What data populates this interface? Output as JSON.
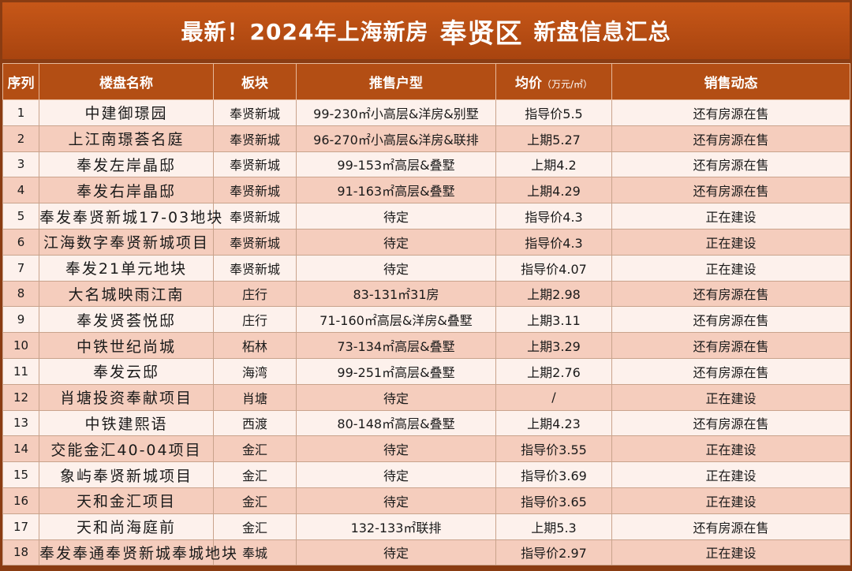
{
  "title": {
    "prefix": "最新！2024年上海新房",
    "district": "奉贤区",
    "suffix": "新盘信息汇总"
  },
  "headers": {
    "seq": "序列",
    "name": "楼盘名称",
    "block": "板块",
    "type": "推售户型",
    "price": "均价",
    "price_unit": "（万元/㎡）",
    "status": "销售动态"
  },
  "rows": [
    {
      "seq": "1",
      "name": "中建御璟园",
      "block": "奉贤新城",
      "type": "99-230㎡小高层&洋房&别墅",
      "price": "指导价5.5",
      "status": "还有房源在售"
    },
    {
      "seq": "2",
      "name": "上江南璟荟名庭",
      "block": "奉贤新城",
      "type": "96-270㎡小高层&洋房&联排",
      "price": "上期5.27",
      "status": "还有房源在售"
    },
    {
      "seq": "3",
      "name": "奉发左岸晶邸",
      "block": "奉贤新城",
      "type": "99-153㎡高层&叠墅",
      "price": "上期4.2",
      "status": "还有房源在售"
    },
    {
      "seq": "4",
      "name": "奉发右岸晶邸",
      "block": "奉贤新城",
      "type": "91-163㎡高层&叠墅",
      "price": "上期4.29",
      "status": "还有房源在售"
    },
    {
      "seq": "5",
      "name": "奉发奉贤新城17-03地块",
      "block": "奉贤新城",
      "type": "待定",
      "price": "指导价4.3",
      "status": "正在建设"
    },
    {
      "seq": "6",
      "name": "江海数字奉贤新城项目",
      "block": "奉贤新城",
      "type": "待定",
      "price": "指导价4.3",
      "status": "正在建设"
    },
    {
      "seq": "7",
      "name": "奉发21单元地块",
      "block": "奉贤新城",
      "type": "待定",
      "price": "指导价4.07",
      "status": "正在建设"
    },
    {
      "seq": "8",
      "name": "大名城映雨江南",
      "block": "庄行",
      "type": "83-131㎡31房",
      "price": "上期2.98",
      "status": "还有房源在售"
    },
    {
      "seq": "9",
      "name": "奉发贤荟悦邸",
      "block": "庄行",
      "type": "71-160㎡高层&洋房&叠墅",
      "price": "上期3.11",
      "status": "还有房源在售"
    },
    {
      "seq": "10",
      "name": "中铁世纪尚城",
      "block": "柘林",
      "type": "73-134㎡高层&叠墅",
      "price": "上期3.29",
      "status": "还有房源在售"
    },
    {
      "seq": "11",
      "name": "奉发云邸",
      "block": "海湾",
      "type": "99-251㎡高层&叠墅",
      "price": "上期2.76",
      "status": "还有房源在售"
    },
    {
      "seq": "12",
      "name": "肖塘投资奉献项目",
      "block": "肖塘",
      "type": "待定",
      "price": "/",
      "status": "正在建设"
    },
    {
      "seq": "13",
      "name": "中铁建熙语",
      "block": "西渡",
      "type": "80-148㎡高层&叠墅",
      "price": "上期4.23",
      "status": "还有房源在售"
    },
    {
      "seq": "14",
      "name": "交能金汇40-04项目",
      "block": "金汇",
      "type": "待定",
      "price": "指导价3.55",
      "status": "正在建设"
    },
    {
      "seq": "15",
      "name": "象屿奉贤新城项目",
      "block": "金汇",
      "type": "待定",
      "price": "指导价3.69",
      "status": "正在建设"
    },
    {
      "seq": "16",
      "name": "天和金汇项目",
      "block": "金汇",
      "type": "待定",
      "price": "指导价3.65",
      "status": "正在建设"
    },
    {
      "seq": "17",
      "name": "天和尚海庭前",
      "block": "金汇",
      "type": "132-133㎡联排",
      "price": "上期5.3",
      "status": "还有房源在售"
    },
    {
      "seq": "18",
      "name": "奉发奉通奉贤新城奉城地块",
      "block": "奉城",
      "type": "待定",
      "price": "指导价2.97",
      "status": "正在建设"
    }
  ],
  "colors": {
    "title_bg": "#b34e14",
    "header_bg": "#b34e14",
    "row_light": "#fdf1ec",
    "row_dark": "#f5cdbd"
  }
}
